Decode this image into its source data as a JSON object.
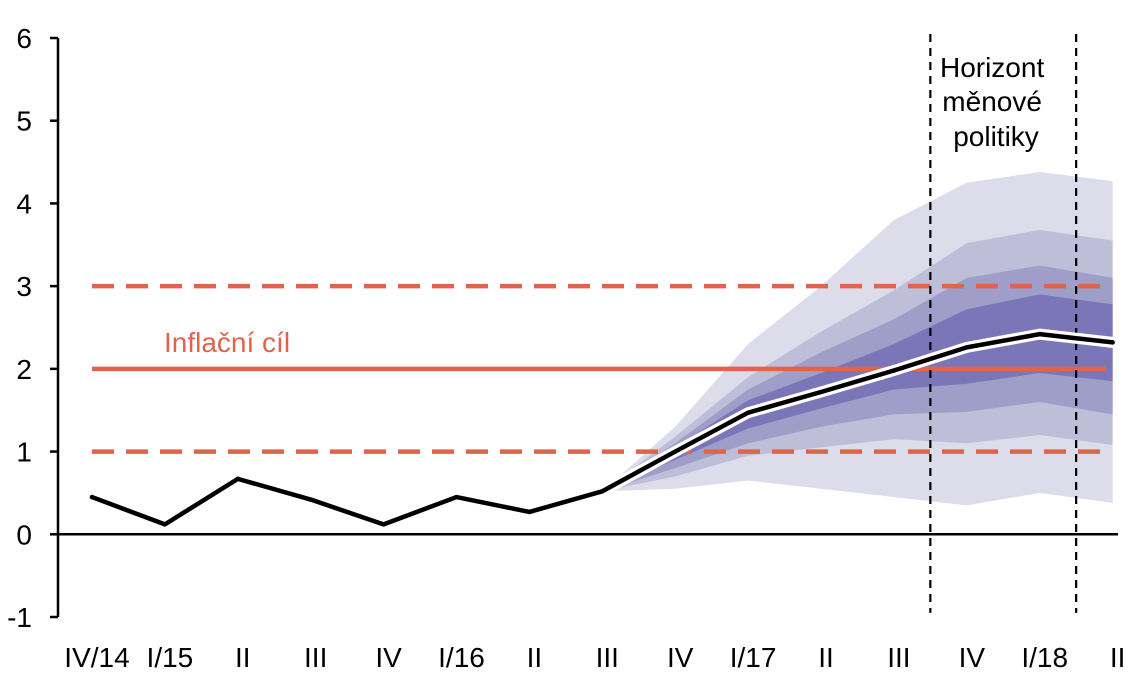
{
  "chart_data": {
    "type": "line",
    "categories": [
      "IV/14",
      "I/15",
      "II",
      "III",
      "IV",
      "I/16",
      "II",
      "III",
      "IV",
      "I/17",
      "II",
      "III",
      "IV",
      "I/18",
      "II"
    ],
    "ylim": [
      -1,
      6
    ],
    "yticks": [
      -1,
      0,
      1,
      2,
      3,
      4,
      5,
      6
    ],
    "series": [
      {
        "values": [
          0.45,
          0.12,
          0.67,
          0.42,
          0.12,
          0.45,
          0.27,
          0.52,
          1.0,
          1.47,
          1.72,
          1.98,
          2.26,
          2.42,
          2.32
        ],
        "color": "#000000"
      }
    ],
    "forecast_start_index": 7,
    "fan_bands": [
      {
        "upper": [
          0.52,
          1.3,
          2.3,
          3.0,
          3.8,
          4.25,
          4.38,
          4.27
        ],
        "lower": [
          0.52,
          0.55,
          0.65,
          0.55,
          0.45,
          0.35,
          0.5,
          0.38
        ],
        "color": "#dcdcea"
      },
      {
        "upper": [
          0.52,
          1.18,
          1.9,
          2.45,
          2.95,
          3.52,
          3.68,
          3.55
        ],
        "lower": [
          0.52,
          0.7,
          0.95,
          1.05,
          1.15,
          1.1,
          1.2,
          1.08
        ],
        "color": "#bebed9"
      },
      {
        "upper": [
          0.52,
          1.1,
          1.75,
          2.2,
          2.6,
          3.1,
          3.25,
          3.1
        ],
        "lower": [
          0.52,
          0.8,
          1.1,
          1.3,
          1.45,
          1.48,
          1.6,
          1.45
        ],
        "color": "#9e9ec8"
      },
      {
        "upper": [
          0.52,
          1.05,
          1.62,
          1.95,
          2.3,
          2.72,
          2.9,
          2.78
        ],
        "lower": [
          0.52,
          0.9,
          1.28,
          1.52,
          1.75,
          1.82,
          1.95,
          1.85
        ],
        "color": "#7b76b8"
      }
    ],
    "target": {
      "label": "Inflační cíl",
      "value": 2,
      "band": [
        1,
        3
      ],
      "color": "#e0644b"
    },
    "policy_horizon": {
      "label_lines": [
        "Horizont",
        "měnové",
        "politiky"
      ],
      "start_index": 11.5,
      "end_index": 13.5
    },
    "grid": false
  }
}
